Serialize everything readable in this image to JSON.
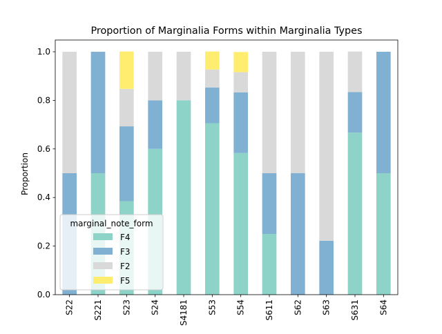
{
  "chart_data": {
    "type": "bar",
    "stacked": true,
    "title": "Proportion of Marginalia Forms within Marginalia Types",
    "xlabel": "",
    "ylabel": "Proportion",
    "ylim": [
      0,
      1.0
    ],
    "yticks": [
      "0.0",
      "0.2",
      "0.4",
      "0.6",
      "0.8",
      "1.0"
    ],
    "categories": [
      "S22",
      "S221",
      "S23",
      "S24",
      "S4181",
      "S53",
      "S54",
      "S611",
      "S62",
      "S63",
      "S631",
      "S64"
    ],
    "series": [
      {
        "name": "F4",
        "color": "#8dd3c7",
        "values": [
          0,
          0.5,
          0.385,
          0.6,
          0.8,
          0.706,
          0.583,
          0.25,
          0,
          0,
          0.667,
          0.5
        ]
      },
      {
        "name": "F3",
        "color": "#80b1d3",
        "values": [
          0.5,
          0.5,
          0.308,
          0.2,
          0,
          0.147,
          0.25,
          0.25,
          0.5,
          0.222,
          0.167,
          0.5
        ]
      },
      {
        "name": "F2",
        "color": "#d9d9d9",
        "values": [
          0.5,
          0,
          0.154,
          0.2,
          0.2,
          0.074,
          0.083,
          0.5,
          0.5,
          0.778,
          0.167,
          0
        ]
      },
      {
        "name": "F5",
        "color": "#ffed6f",
        "values": [
          0,
          0,
          0.154,
          0,
          0,
          0.074,
          0.083,
          0,
          0,
          0,
          0,
          0
        ]
      }
    ],
    "legend": {
      "title": "marginal_note_form",
      "placement": "lower-left"
    },
    "grid": false
  }
}
